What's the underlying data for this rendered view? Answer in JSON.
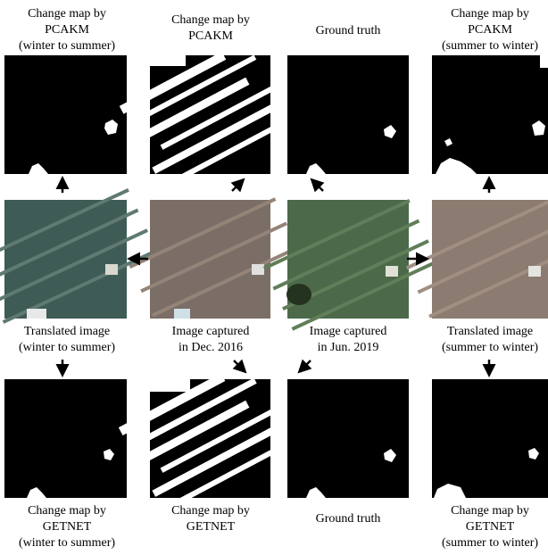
{
  "top_row": [
    {
      "lines": [
        "Change map by",
        "PCAKM",
        "(winter to summer)"
      ]
    },
    {
      "lines": [
        "Change map by",
        "PCAKM"
      ]
    },
    {
      "lines": [
        "Ground truth"
      ]
    },
    {
      "lines": [
        "Change map by",
        "PCAKM",
        "(summer to winter)"
      ]
    }
  ],
  "middle_row": [
    {
      "lines": [
        "Translated image",
        "(winter to summer)"
      ]
    },
    {
      "lines": [
        "Image captured",
        "in Dec. 2016"
      ]
    },
    {
      "lines": [
        "Image captured",
        "in Jun. 2019"
      ]
    },
    {
      "lines": [
        "Translated image",
        "(summer to winter)"
      ]
    }
  ],
  "bottom_row": [
    {
      "lines": [
        "Change map by",
        "GETNET",
        "(winter to summer)"
      ]
    },
    {
      "lines": [
        "Change map by",
        "GETNET"
      ]
    },
    {
      "lines": [
        "Ground truth"
      ]
    },
    {
      "lines": [
        "Change map by",
        "GETNET",
        "(summer to winter)"
      ]
    }
  ]
}
